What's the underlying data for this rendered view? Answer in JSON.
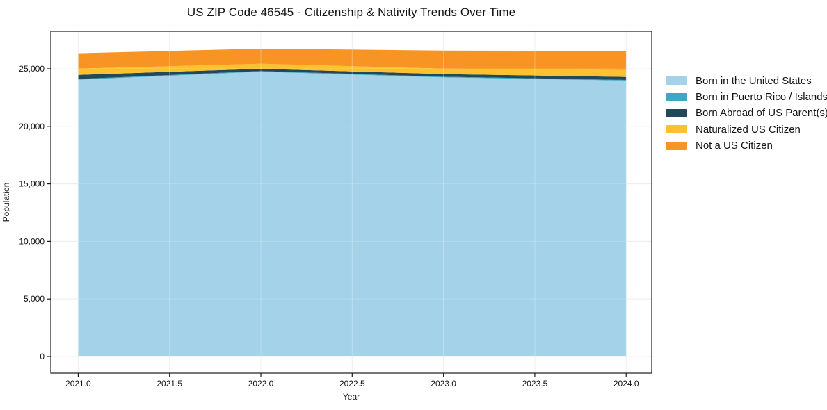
{
  "title": "US ZIP Code 46545 - Citizenship & Nativity Trends Over Time",
  "chart_data": {
    "type": "area",
    "stacked": true,
    "title": "US ZIP Code 46545 - Citizenship & Nativity Trends Over Time",
    "xlabel": "Year",
    "ylabel": "Population",
    "x": [
      2021.0,
      2022.0,
      2023.0,
      2024.0
    ],
    "series": [
      {
        "name": "Born in the United States",
        "color": "#a3d2e9",
        "values": [
          24050,
          24740,
          24250,
          23970
        ]
      },
      {
        "name": "Born in Puerto Rico / Islands",
        "color": "#3da8c2",
        "values": [
          70,
          60,
          60,
          60
        ]
      },
      {
        "name": "Born Abroad of US Parent(s)",
        "color": "#23485a",
        "values": [
          350,
          200,
          230,
          260
        ]
      },
      {
        "name": "Naturalized US Citizen",
        "color": "#fcc22e",
        "values": [
          540,
          440,
          470,
          610
        ]
      },
      {
        "name": "Not a US Citizen",
        "color": "#f79423",
        "values": [
          1340,
          1310,
          1570,
          1650
        ]
      }
    ],
    "totals": [
      26350,
      26750,
      26580,
      26550
    ],
    "xticks": {
      "values": [
        2021.0,
        2021.5,
        2022.0,
        2022.5,
        2023.0,
        2023.5,
        2024.0
      ],
      "labels": [
        "2021.0",
        "2021.5",
        "2022.0",
        "2022.5",
        "2023.0",
        "2023.5",
        "2024.0"
      ]
    },
    "yticks": {
      "values": [
        0,
        5000,
        10000,
        15000,
        20000,
        25000
      ],
      "labels": [
        "0",
        "5,000",
        "10,000",
        "15,000",
        "20,000",
        "25,000"
      ]
    },
    "xlim": [
      2020.85,
      2024.14
    ],
    "ylim": [
      -1450,
      28260
    ],
    "grid": true,
    "legend_position": "right",
    "colors": {
      "background": "#ffffff",
      "gridline": "#e9e9e9",
      "spine": "#1a1a1a",
      "text": "#141414"
    }
  }
}
